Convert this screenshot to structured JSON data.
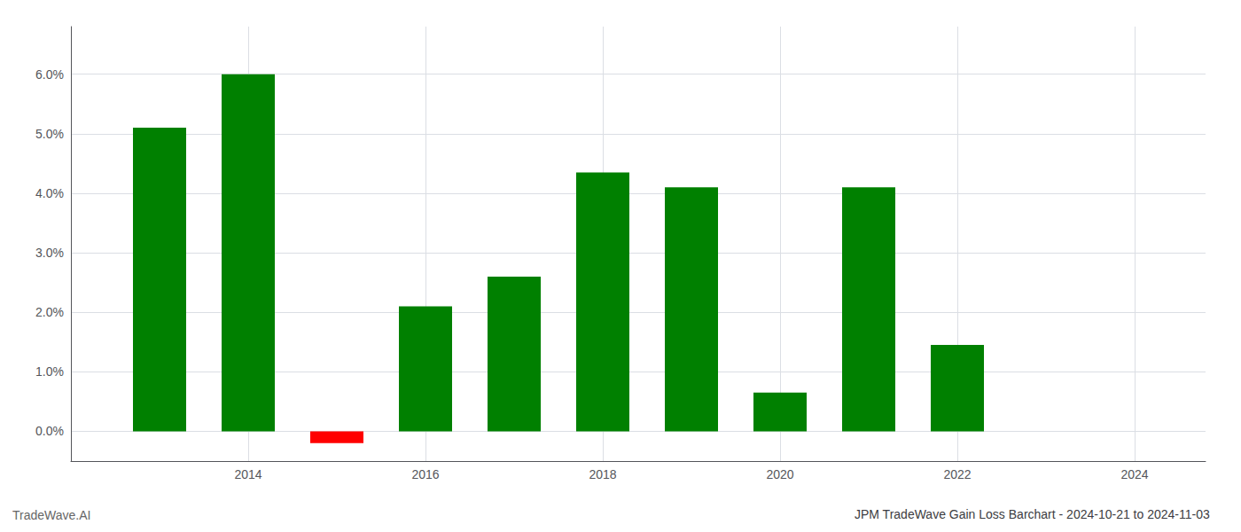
{
  "chart_data": {
    "type": "bar",
    "title": "JPM TradeWave Gain Loss Barchart - 2024-10-21 to 2024-11-03",
    "annotations": [
      "TradeWave.AI"
    ],
    "x": [
      2013,
      2014,
      2015,
      2016,
      2017,
      2018,
      2019,
      2020,
      2021,
      2022
    ],
    "values": [
      0.051,
      0.06,
      -0.002,
      0.021,
      0.026,
      0.0435,
      0.041,
      0.0065,
      0.041,
      0.0145
    ],
    "colors": [
      "#008000",
      "#008000",
      "#ff0000",
      "#008000",
      "#008000",
      "#008000",
      "#008000",
      "#008000",
      "#008000",
      "#008000"
    ],
    "xlim": [
      2012.0,
      2024.8
    ],
    "xticks": [
      2014,
      2016,
      2018,
      2020,
      2022,
      2024
    ],
    "ylim": [
      -0.005,
      0.068
    ],
    "yticks": [
      {
        "value": 0.0,
        "label": "0.0%"
      },
      {
        "value": 0.01,
        "label": "1.0%"
      },
      {
        "value": 0.02,
        "label": "2.0%"
      },
      {
        "value": 0.03,
        "label": "3.0%"
      },
      {
        "value": 0.04,
        "label": "4.0%"
      },
      {
        "value": 0.05,
        "label": "5.0%"
      },
      {
        "value": 0.06,
        "label": "6.0%"
      }
    ],
    "grid": true
  }
}
